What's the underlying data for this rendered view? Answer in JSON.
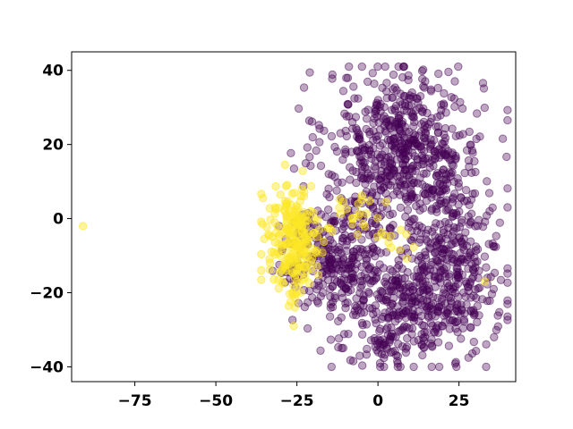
{
  "chart_data": {
    "type": "scatter",
    "xlim": [
      -94.5,
      42.5
    ],
    "ylim": [
      -44,
      45
    ],
    "xticks": [
      -75,
      -50,
      -25,
      0,
      25
    ],
    "yticks": [
      -40,
      -20,
      0,
      20,
      40
    ],
    "grid": false,
    "series": [
      {
        "color": "#440154",
        "opacity": 0.35,
        "clusters": [
          {
            "cx": 8,
            "cy": 18,
            "sx": 12,
            "sy": 11,
            "n": 650
          },
          {
            "cx": -14,
            "cy": -10,
            "sx": 8,
            "sy": 7,
            "n": 260
          },
          {
            "cx": 12,
            "cy": -22,
            "sx": 12,
            "sy": 8,
            "n": 420
          },
          {
            "cx": 24,
            "cy": -10,
            "sx": 7,
            "sy": 9,
            "n": 180
          },
          {
            "cx": 2,
            "cy": -36,
            "sx": 4,
            "sy": 3,
            "n": 40
          }
        ]
      },
      {
        "color": "#fde725",
        "opacity": 0.45,
        "clusters": [
          {
            "cx": -26,
            "cy": -6,
            "sx": 4.5,
            "sy": 8,
            "n": 230
          },
          {
            "cx": -6,
            "cy": 2,
            "sx": 5,
            "sy": 4,
            "n": 20
          },
          {
            "cx": 4,
            "cy": -6,
            "sx": 3,
            "sy": 3,
            "n": 10
          }
        ],
        "points": [
          {
            "x": -91,
            "y": -2
          },
          {
            "x": 33,
            "y": -17
          },
          {
            "x": -26,
            "y": -29
          }
        ]
      }
    ]
  }
}
